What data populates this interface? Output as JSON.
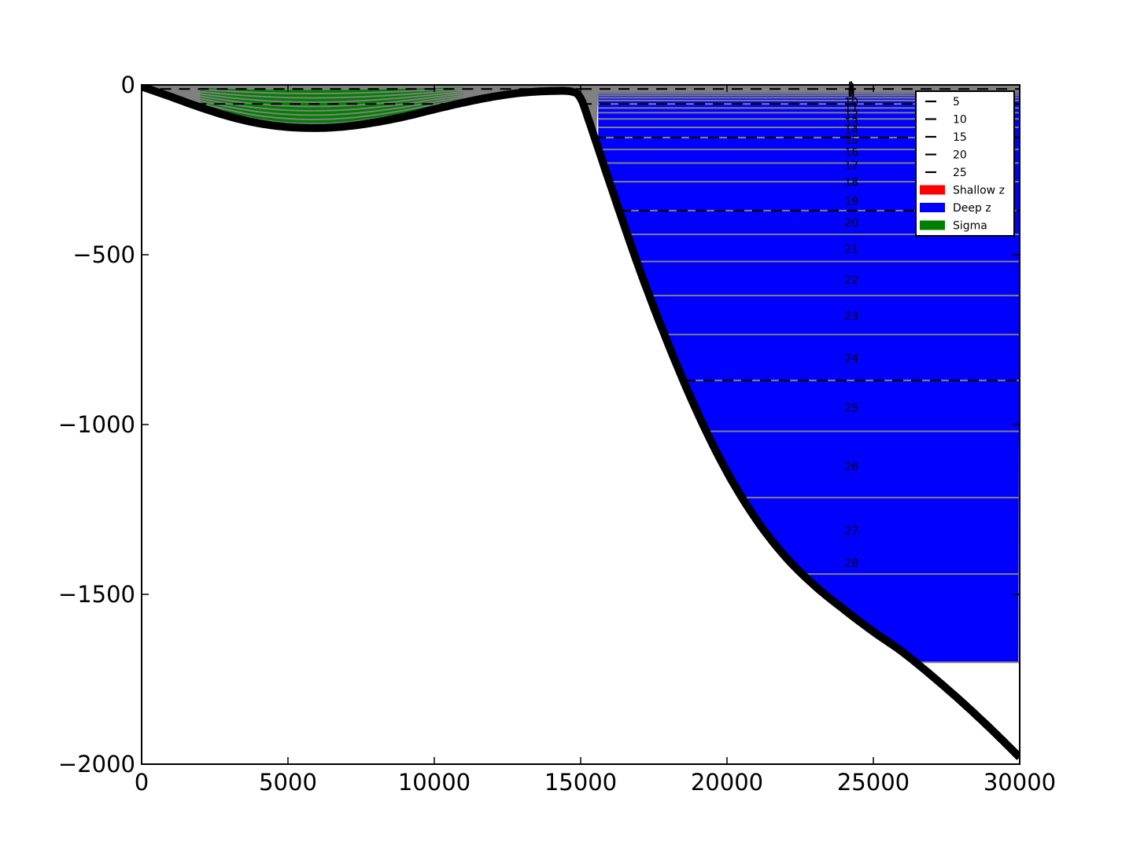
{
  "chart_data": {
    "type": "area",
    "xlim": [
      0,
      30000
    ],
    "ylim": [
      -2000,
      0
    ],
    "x_ticks": [
      0,
      5000,
      10000,
      15000,
      20000,
      25000,
      30000
    ],
    "y_ticks": [
      0,
      -500,
      -1000,
      -1500,
      -2000
    ],
    "x_tick_labels": [
      "0",
      "5000",
      "10000",
      "15000",
      "20000",
      "25000",
      "30000"
    ],
    "y_tick_labels": [
      "0",
      "−500",
      "−1000",
      "−1500",
      "−2000"
    ],
    "grid": false,
    "legend_position": "upper-right",
    "legend": [
      {
        "label": "5",
        "kind": "dash"
      },
      {
        "label": "10",
        "kind": "dash"
      },
      {
        "label": "15",
        "kind": "dash"
      },
      {
        "label": "20",
        "kind": "dash"
      },
      {
        "label": "25",
        "kind": "dash"
      },
      {
        "label": "Shallow z",
        "kind": "patch",
        "color": "#ff0000"
      },
      {
        "label": "Deep z",
        "kind": "patch",
        "color": "#0000ff"
      },
      {
        "label": "Sigma",
        "kind": "patch",
        "color": "#008000"
      }
    ],
    "colors": {
      "bathymetry": "#000000",
      "deep_z": "#0000ff",
      "sigma": "#008000",
      "shallow_z": "#ff0000",
      "layer_interface": "#808080",
      "coastal_fill": "#808080",
      "dashed_interface": "#000000"
    },
    "bathymetry": {
      "x": [
        0,
        1000,
        2000,
        3000,
        4000,
        5000,
        6000,
        7000,
        8000,
        9000,
        10000,
        11000,
        12000,
        13000,
        14000,
        14700,
        15000,
        15300,
        16000,
        17000,
        18000,
        19000,
        20000,
        21000,
        22000,
        23000,
        24000,
        25000,
        26000,
        27000,
        28000,
        29000,
        30000
      ],
      "y": [
        -5,
        -35,
        -66,
        -93,
        -113,
        -124,
        -127,
        -122,
        -110,
        -93,
        -72,
        -52,
        -35,
        -23,
        -18,
        -20,
        -40,
        -110,
        -290,
        -540,
        -765,
        -967,
        -1140,
        -1280,
        -1390,
        -1475,
        -1545,
        -1610,
        -1670,
        -1740,
        -1815,
        -1895,
        -1980
      ]
    },
    "deep_z_region": {
      "x_start": 15600,
      "x_end": 30000,
      "bottom": -1700
    },
    "sigma_region": {
      "x_start": 2000,
      "x_end": 11000
    },
    "layer_depths": [
      -2,
      -4,
      -6,
      -9,
      -12,
      -16,
      -20,
      -25,
      -31,
      -38,
      -46,
      -56,
      -68,
      -82,
      -100,
      -125,
      -155,
      -190,
      -230,
      -285,
      -370,
      -440,
      -520,
      -620,
      -735,
      -870,
      -1020,
      -1215,
      -1440,
      -1700
    ],
    "dashed_interfaces": [
      {
        "label": "5",
        "depth": -12
      },
      {
        "label": "10",
        "depth": -56
      },
      {
        "label": "15",
        "depth": -155
      },
      {
        "label": "20",
        "depth": -370
      },
      {
        "label": "25",
        "depth": -870
      }
    ],
    "layer_labels": {
      "x": 24250,
      "items": [
        {
          "text": "1",
          "y": 0
        },
        {
          "text": "2",
          "y": -3
        },
        {
          "text": "3",
          "y": -5
        },
        {
          "text": "4",
          "y": -7
        },
        {
          "text": "5",
          "y": -10
        },
        {
          "text": "6",
          "y": -14
        },
        {
          "text": "7",
          "y": -18
        },
        {
          "text": "8",
          "y": -22
        },
        {
          "text": "9",
          "y": -28
        },
        {
          "text": "10",
          "y": -47
        },
        {
          "text": "11",
          "y": -65
        },
        {
          "text": "12",
          "y": -84
        },
        {
          "text": "13",
          "y": -108
        },
        {
          "text": "14",
          "y": -130
        },
        {
          "text": "15",
          "y": -160
        },
        {
          "text": "16",
          "y": -196
        },
        {
          "text": "17",
          "y": -235
        },
        {
          "text": "18",
          "y": -283
        },
        {
          "text": "19",
          "y": -340
        },
        {
          "text": "20",
          "y": -404
        },
        {
          "text": "21",
          "y": -480
        },
        {
          "text": "22",
          "y": -572
        },
        {
          "text": "23",
          "y": -678
        },
        {
          "text": "24",
          "y": -802
        },
        {
          "text": "25",
          "y": -948
        },
        {
          "text": "26",
          "y": -1122
        },
        {
          "text": "27",
          "y": -1310
        },
        {
          "text": "28",
          "y": -1405
        }
      ]
    }
  }
}
